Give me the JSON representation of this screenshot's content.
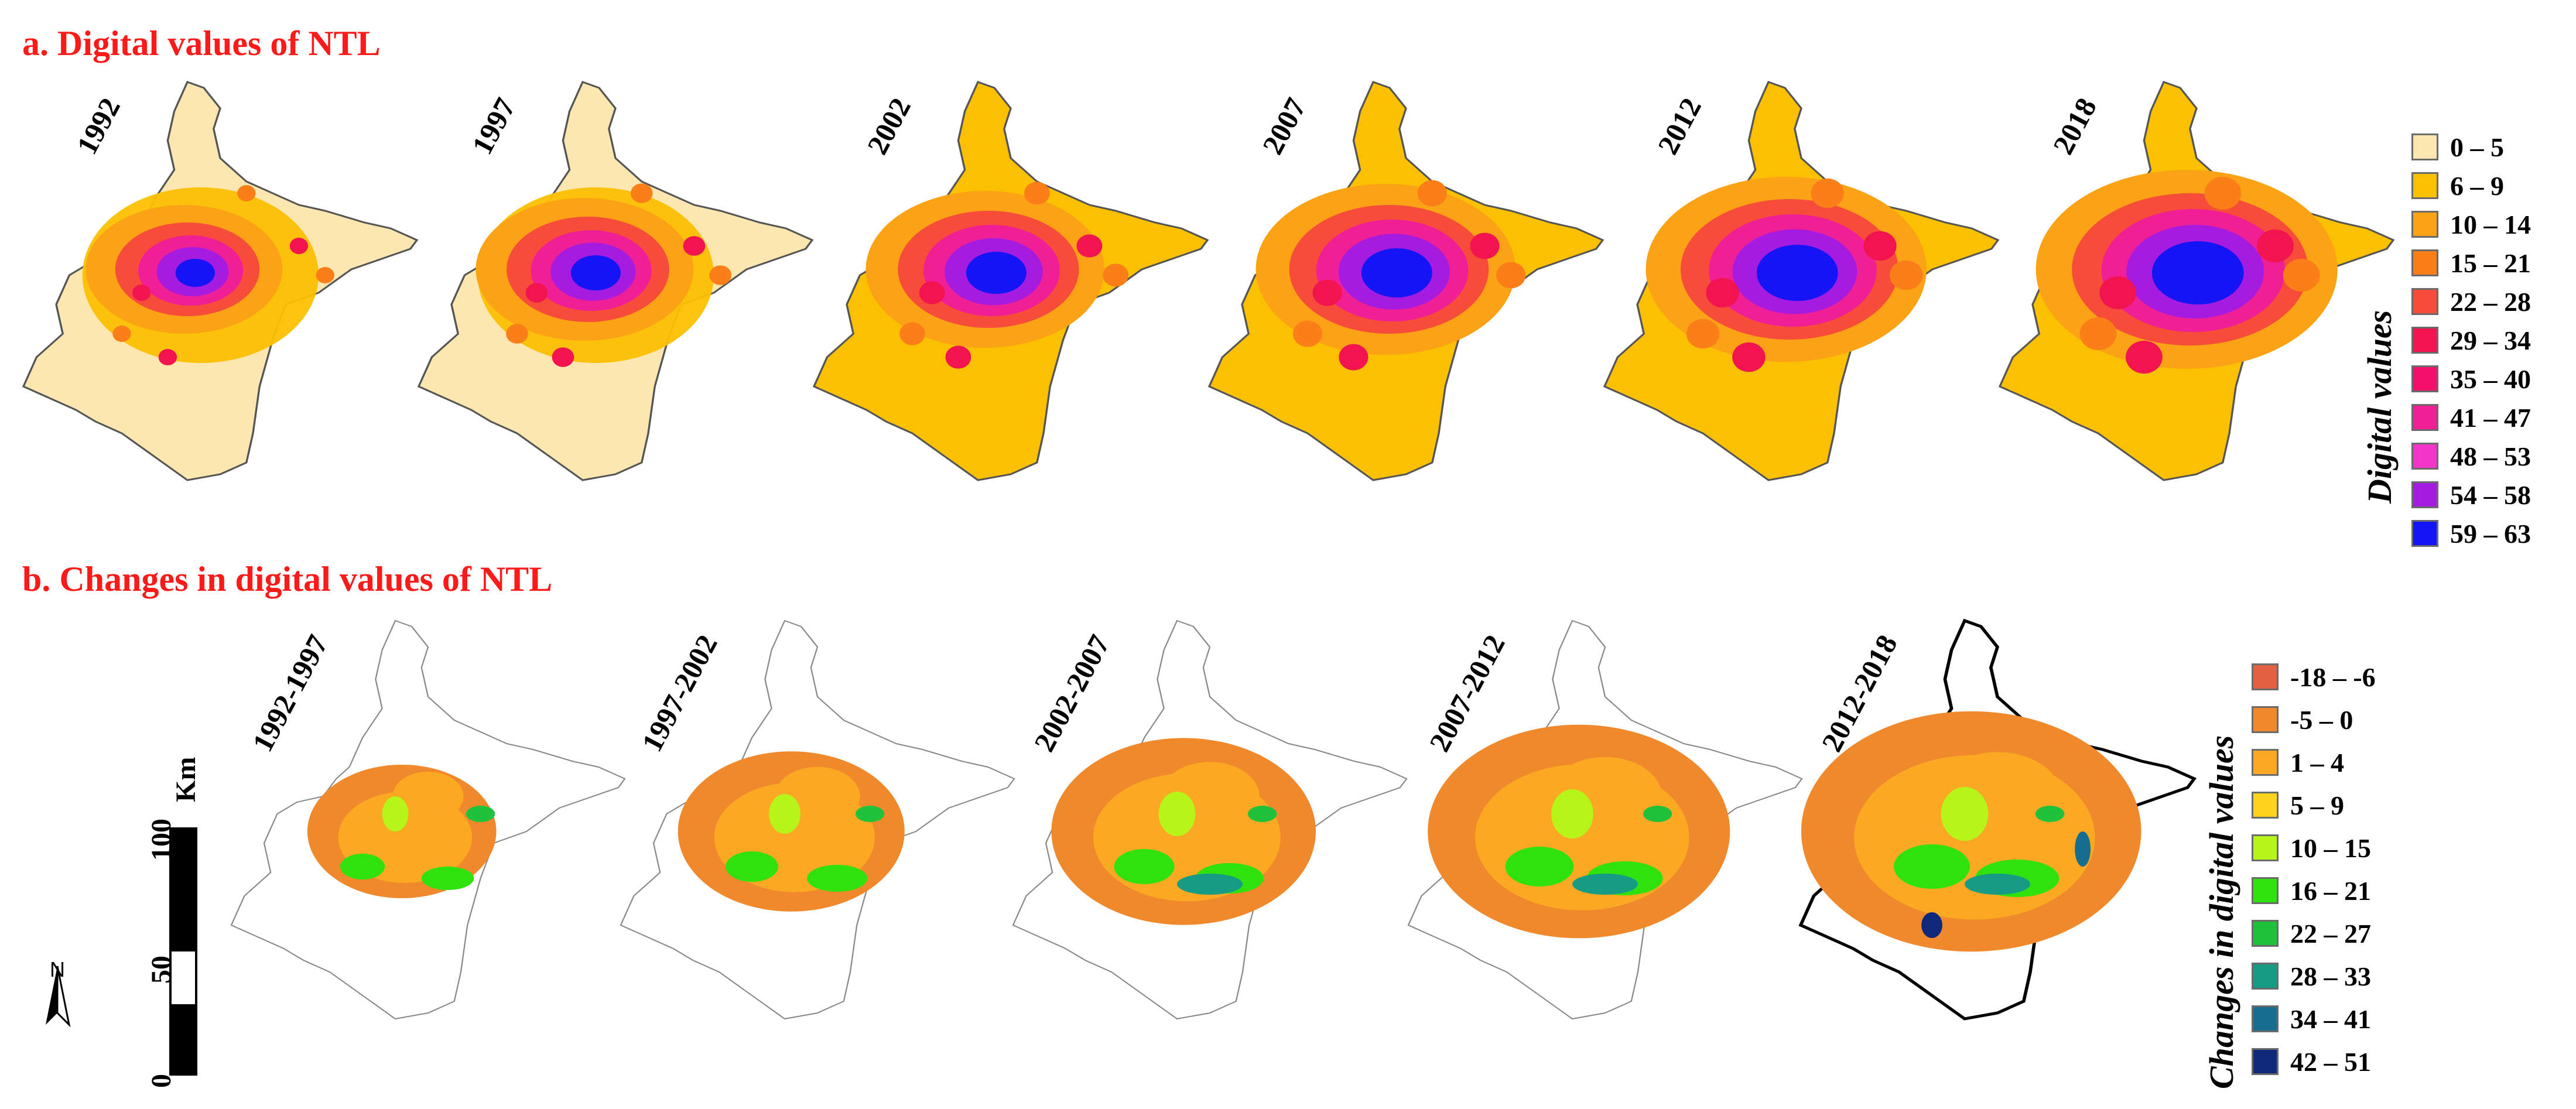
{
  "section_a": {
    "title": "a. Digital values of NTL"
  },
  "section_b": {
    "title": "b. Changes in digital values of NTL"
  },
  "maps_a": [
    "1992",
    "1997",
    "2002",
    "2007",
    "2012",
    "2018"
  ],
  "maps_b": [
    "1992-1997",
    "1997-2002",
    "2002-2007",
    "2007-2012",
    "2012-2018"
  ],
  "legend_a": {
    "title": "Digital values",
    "items": [
      {
        "label": "0 – 5",
        "color": "#fde7b0"
      },
      {
        "label": "6 – 9",
        "color": "#fcc002"
      },
      {
        "label": "10 – 14",
        "color": "#fca215"
      },
      {
        "label": "15 – 21",
        "color": "#fb7f19"
      },
      {
        "label": "22 – 28",
        "color": "#f74c3a"
      },
      {
        "label": "29 – 34",
        "color": "#f2144f"
      },
      {
        "label": "35 – 40",
        "color": "#f3106d"
      },
      {
        "label": "41 – 47",
        "color": "#f11f95"
      },
      {
        "label": "48 – 53",
        "color": "#f234c8"
      },
      {
        "label": "54 – 58",
        "color": "#a61be0"
      },
      {
        "label": "59 – 63",
        "color": "#1414f5"
      }
    ]
  },
  "legend_b": {
    "title": "Changes in digital values",
    "items": [
      {
        "label": "-18 – -6",
        "color": "#e46043"
      },
      {
        "label": "-5 – 0",
        "color": "#f0892c"
      },
      {
        "label": "1 – 4",
        "color": "#fba922"
      },
      {
        "label": "5 – 9",
        "color": "#ffd21c"
      },
      {
        "label": "10 – 15",
        "color": "#b7f51a"
      },
      {
        "label": "16 – 21",
        "color": "#2fe20e"
      },
      {
        "label": "22 – 27",
        "color": "#1fc23a"
      },
      {
        "label": "28 – 33",
        "color": "#169b84"
      },
      {
        "label": "34 – 41",
        "color": "#166e8f"
      },
      {
        "label": "42 – 51",
        "color": "#10287a"
      }
    ]
  },
  "scale_bar": {
    "unit": "Km",
    "ticks": [
      "0",
      "50",
      "100"
    ]
  },
  "north_arrow": {
    "label": "N"
  }
}
